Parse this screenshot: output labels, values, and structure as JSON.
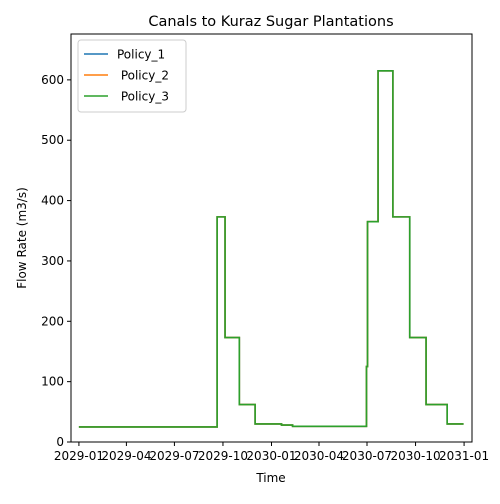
{
  "chart_data": {
    "type": "line",
    "title": "Canals to Kuraz Sugar Plantations",
    "xlabel": "Time",
    "ylabel": "Flow Rate (m3/s)",
    "xlim": [
      "2028-12-17",
      "2031-01-16"
    ],
    "ylim": [
      0,
      676
    ],
    "x_ticks": [
      {
        "date": "2029-01-01",
        "label": "2029-01"
      },
      {
        "date": "2029-04-01",
        "label": "2029-04"
      },
      {
        "date": "2029-07-01",
        "label": "2029-07"
      },
      {
        "date": "2029-10-01",
        "label": "2029-10"
      },
      {
        "date": "2030-01-01",
        "label": "2030-01"
      },
      {
        "date": "2030-04-01",
        "label": "2030-04"
      },
      {
        "date": "2030-07-01",
        "label": "2030-07"
      },
      {
        "date": "2030-10-01",
        "label": "2030-10"
      },
      {
        "date": "2031-01-01",
        "label": "2031-01"
      }
    ],
    "y_ticks": [
      0,
      100,
      200,
      300,
      400,
      500,
      600
    ],
    "grid": false,
    "legend_position": "upper left",
    "series": [
      {
        "name": "Policy_1",
        "color": "#1f77b4",
        "x": [
          "2029-01-01",
          "2029-09-20",
          "2029-09-20",
          "2029-10-01",
          "2029-10-01",
          "2029-10-05",
          "2029-10-05",
          "2029-10-31",
          "2029-10-31",
          "2029-11-01",
          "2029-11-01",
          "2029-11-30",
          "2029-11-30",
          "2029-12-01",
          "2029-12-01",
          "2030-01-20",
          "2030-01-20",
          "2030-02-10",
          "2030-02-10",
          "2030-06-30",
          "2030-06-30",
          "2030-07-02",
          "2030-07-02",
          "2030-07-22",
          "2030-07-22",
          "2030-08-19",
          "2030-08-19",
          "2030-09-20",
          "2030-09-20",
          "2030-10-18",
          "2030-10-18",
          "2030-10-21",
          "2030-10-21",
          "2030-11-07",
          "2030-11-07",
          "2030-11-30",
          "2030-11-30",
          "2030-12-31"
        ],
        "values": [
          25,
          25,
          373,
          373,
          373,
          373,
          173,
          173,
          173,
          173,
          62,
          62,
          62,
          62,
          30,
          30,
          28,
          28,
          26,
          26,
          125,
          125,
          365,
          365,
          615,
          615,
          373,
          373,
          173,
          173,
          173,
          173,
          62,
          62,
          62,
          62,
          30,
          30
        ]
      },
      {
        "name": " Policy_2",
        "color": "#ff7f0e",
        "x": [
          "2029-01-01",
          "2029-09-20",
          "2029-09-20",
          "2029-10-01",
          "2029-10-01",
          "2029-10-05",
          "2029-10-05",
          "2029-10-31",
          "2029-10-31",
          "2029-11-01",
          "2029-11-01",
          "2029-11-30",
          "2029-11-30",
          "2029-12-01",
          "2029-12-01",
          "2030-01-20",
          "2030-01-20",
          "2030-02-10",
          "2030-02-10",
          "2030-06-30",
          "2030-06-30",
          "2030-07-02",
          "2030-07-02",
          "2030-07-22",
          "2030-07-22",
          "2030-08-19",
          "2030-08-19",
          "2030-09-20",
          "2030-09-20",
          "2030-10-18",
          "2030-10-18",
          "2030-10-21",
          "2030-10-21",
          "2030-11-07",
          "2030-11-07",
          "2030-11-30",
          "2030-11-30",
          "2030-12-31"
        ],
        "values": [
          25,
          25,
          373,
          373,
          373,
          373,
          173,
          173,
          173,
          173,
          62,
          62,
          62,
          62,
          30,
          30,
          28,
          28,
          26,
          26,
          125,
          125,
          365,
          365,
          615,
          615,
          373,
          373,
          173,
          173,
          173,
          173,
          62,
          62,
          62,
          62,
          30,
          30
        ]
      },
      {
        "name": " Policy_3",
        "color": "#2ca02c",
        "x": [
          "2029-01-01",
          "2029-09-20",
          "2029-09-20",
          "2029-10-01",
          "2029-10-01",
          "2029-10-05",
          "2029-10-05",
          "2029-10-31",
          "2029-10-31",
          "2029-11-01",
          "2029-11-01",
          "2029-11-30",
          "2029-11-30",
          "2029-12-01",
          "2029-12-01",
          "2030-01-20",
          "2030-01-20",
          "2030-02-10",
          "2030-02-10",
          "2030-06-30",
          "2030-06-30",
          "2030-07-02",
          "2030-07-02",
          "2030-07-22",
          "2030-07-22",
          "2030-08-19",
          "2030-08-19",
          "2030-09-20",
          "2030-09-20",
          "2030-10-18",
          "2030-10-18",
          "2030-10-21",
          "2030-10-21",
          "2030-11-07",
          "2030-11-07",
          "2030-11-30",
          "2030-11-30",
          "2030-12-31"
        ],
        "values": [
          25,
          25,
          373,
          373,
          373,
          373,
          173,
          173,
          173,
          173,
          62,
          62,
          62,
          62,
          30,
          30,
          28,
          28,
          26,
          26,
          125,
          125,
          365,
          365,
          615,
          615,
          373,
          373,
          173,
          173,
          173,
          173,
          62,
          62,
          62,
          62,
          30,
          30
        ]
      }
    ]
  }
}
